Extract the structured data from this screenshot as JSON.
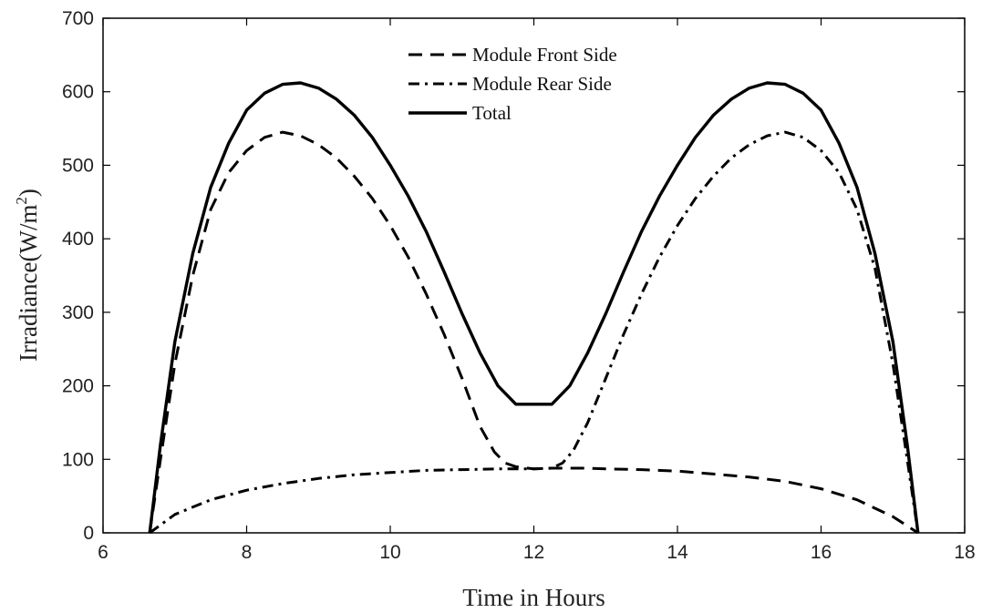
{
  "chart_data": {
    "type": "line",
    "xlabel": "Time in Hours",
    "ylabel": "Irradiance(W/m",
    "ylabel_superscript": "2",
    "ylabel_suffix": ")",
    "xlim": [
      6,
      18
    ],
    "ylim": [
      0,
      700
    ],
    "xticks": [
      6,
      8,
      10,
      12,
      14,
      16,
      18
    ],
    "yticks": [
      0,
      100,
      200,
      300,
      400,
      500,
      600,
      700
    ],
    "grid": false,
    "legend_position": "top-center",
    "series": [
      {
        "name": "Module Front Side",
        "style": "dashed",
        "color": "#000000",
        "points": [
          [
            6.65,
            0
          ],
          [
            6.8,
            100
          ],
          [
            7.0,
            230
          ],
          [
            7.25,
            350
          ],
          [
            7.5,
            440
          ],
          [
            7.75,
            490
          ],
          [
            8.0,
            520
          ],
          [
            8.25,
            538
          ],
          [
            8.5,
            545
          ],
          [
            8.75,
            540
          ],
          [
            9.0,
            528
          ],
          [
            9.25,
            510
          ],
          [
            9.5,
            485
          ],
          [
            9.75,
            455
          ],
          [
            10.0,
            418
          ],
          [
            10.25,
            375
          ],
          [
            10.5,
            325
          ],
          [
            10.75,
            270
          ],
          [
            11.0,
            210
          ],
          [
            11.25,
            145
          ],
          [
            11.45,
            110
          ],
          [
            11.6,
            95
          ],
          [
            11.75,
            90
          ],
          [
            12.0,
            87
          ],
          [
            12.25,
            88
          ],
          [
            12.5,
            88
          ],
          [
            12.75,
            88
          ],
          [
            13.0,
            87
          ],
          [
            13.5,
            86
          ],
          [
            14.0,
            84
          ],
          [
            14.5,
            80
          ],
          [
            15.0,
            76
          ],
          [
            15.5,
            70
          ],
          [
            16.0,
            60
          ],
          [
            16.5,
            45
          ],
          [
            17.0,
            22
          ],
          [
            17.35,
            0
          ]
        ]
      },
      {
        "name": "Module Rear Side",
        "style": "dashdot",
        "color": "#000000",
        "points": [
          [
            6.65,
            0
          ],
          [
            7.0,
            25
          ],
          [
            7.5,
            45
          ],
          [
            8.0,
            58
          ],
          [
            8.5,
            67
          ],
          [
            9.0,
            74
          ],
          [
            9.5,
            79
          ],
          [
            10.0,
            82
          ],
          [
            10.5,
            85
          ],
          [
            11.0,
            86
          ],
          [
            11.5,
            87
          ],
          [
            12.0,
            87
          ],
          [
            12.25,
            88
          ],
          [
            12.4,
            95
          ],
          [
            12.55,
            112
          ],
          [
            12.75,
            150
          ],
          [
            13.0,
            210
          ],
          [
            13.25,
            270
          ],
          [
            13.5,
            325
          ],
          [
            13.75,
            375
          ],
          [
            14.0,
            418
          ],
          [
            14.25,
            455
          ],
          [
            14.5,
            485
          ],
          [
            14.75,
            510
          ],
          [
            15.0,
            528
          ],
          [
            15.25,
            540
          ],
          [
            15.5,
            545
          ],
          [
            15.75,
            538
          ],
          [
            16.0,
            520
          ],
          [
            16.25,
            490
          ],
          [
            16.5,
            440
          ],
          [
            16.75,
            360
          ],
          [
            17.0,
            230
          ],
          [
            17.2,
            100
          ],
          [
            17.35,
            0
          ]
        ]
      },
      {
        "name": "Total",
        "style": "solid",
        "color": "#000000",
        "points": [
          [
            6.65,
            0
          ],
          [
            6.8,
            120
          ],
          [
            7.0,
            260
          ],
          [
            7.25,
            380
          ],
          [
            7.5,
            470
          ],
          [
            7.75,
            530
          ],
          [
            8.0,
            575
          ],
          [
            8.25,
            598
          ],
          [
            8.5,
            610
          ],
          [
            8.75,
            612
          ],
          [
            9.0,
            605
          ],
          [
            9.25,
            590
          ],
          [
            9.5,
            568
          ],
          [
            9.75,
            538
          ],
          [
            10.0,
            500
          ],
          [
            10.25,
            458
          ],
          [
            10.5,
            410
          ],
          [
            10.75,
            355
          ],
          [
            11.0,
            298
          ],
          [
            11.25,
            245
          ],
          [
            11.5,
            200
          ],
          [
            11.75,
            175
          ],
          [
            12.0,
            175
          ],
          [
            12.25,
            175
          ],
          [
            12.5,
            200
          ],
          [
            12.75,
            245
          ],
          [
            13.0,
            298
          ],
          [
            13.25,
            355
          ],
          [
            13.5,
            410
          ],
          [
            13.75,
            458
          ],
          [
            14.0,
            500
          ],
          [
            14.25,
            538
          ],
          [
            14.5,
            568
          ],
          [
            14.75,
            590
          ],
          [
            15.0,
            605
          ],
          [
            15.25,
            612
          ],
          [
            15.5,
            610
          ],
          [
            15.75,
            598
          ],
          [
            16.0,
            575
          ],
          [
            16.25,
            530
          ],
          [
            16.5,
            470
          ],
          [
            16.75,
            380
          ],
          [
            17.0,
            260
          ],
          [
            17.2,
            120
          ],
          [
            17.35,
            0
          ]
        ]
      }
    ]
  }
}
